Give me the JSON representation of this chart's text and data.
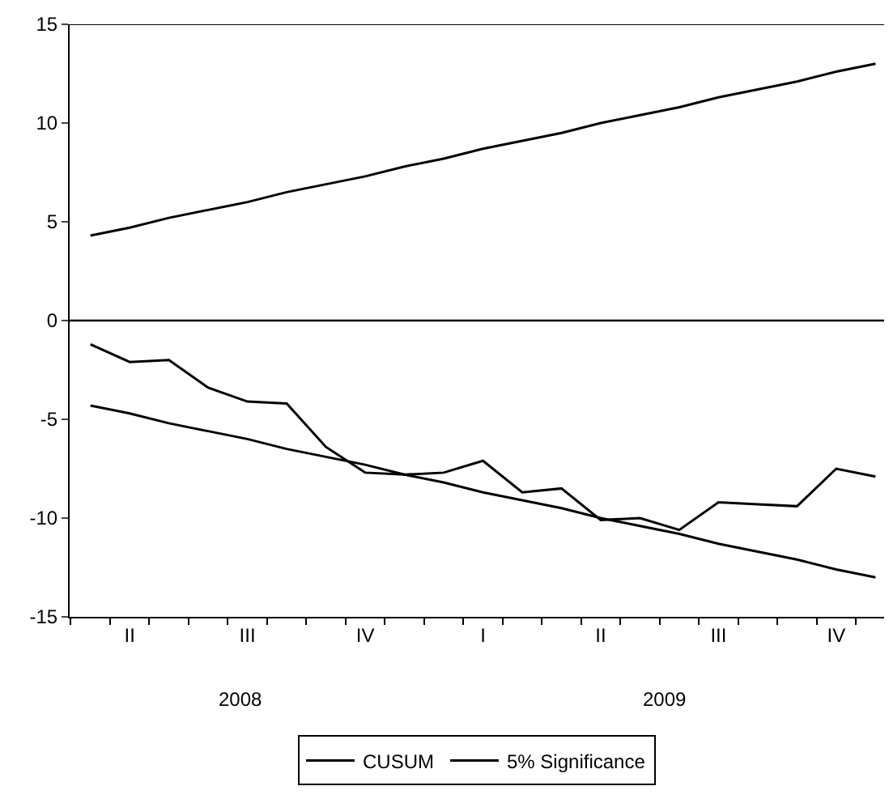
{
  "chart_data": {
    "type": "line",
    "categories": [
      null,
      "II",
      null,
      null,
      "III",
      null,
      null,
      "IV",
      null,
      null,
      "I",
      null,
      null,
      "II",
      null,
      null,
      "III",
      null,
      null,
      "IV",
      null
    ],
    "series": [
      {
        "name": "CUSUM",
        "color": "#000000",
        "values": [
          -1.2,
          -2.1,
          -2.0,
          -3.4,
          -4.1,
          -4.2,
          -6.4,
          -7.7,
          -7.8,
          -7.7,
          -7.1,
          -8.7,
          -8.5,
          -10.1,
          -10.0,
          -10.6,
          -9.2,
          -9.3,
          -9.4,
          -7.5,
          -7.9
        ]
      },
      {
        "name": "5% Significance",
        "color": "#000000",
        "values": [
          4.3,
          4.7,
          5.2,
          5.6,
          6.0,
          6.5,
          6.9,
          7.3,
          7.8,
          8.2,
          8.7,
          9.1,
          9.5,
          10.0,
          10.4,
          10.8,
          11.3,
          11.7,
          12.1,
          12.6,
          13.0
        ]
      },
      {
        "color": "#000000",
        "values": [
          -4.3,
          -4.7,
          -5.2,
          -5.6,
          -6.0,
          -6.5,
          -6.9,
          -7.3,
          -7.8,
          -8.2,
          -8.7,
          -9.1,
          -9.5,
          -10.0,
          -10.4,
          -10.8,
          -11.3,
          -11.7,
          -12.1,
          -12.6,
          -13.0
        ]
      }
    ],
    "annotations": [
      "2008",
      "2009"
    ],
    "ylim": [
      -15,
      15
    ],
    "yticks": [
      -15,
      -10,
      -5,
      0,
      5,
      10,
      15
    ],
    "ref_lines": [
      {
        "axis": "y",
        "value": 0
      }
    ],
    "grid": false,
    "legend": "bottom",
    "marker": "none",
    "line_style": "solid"
  }
}
